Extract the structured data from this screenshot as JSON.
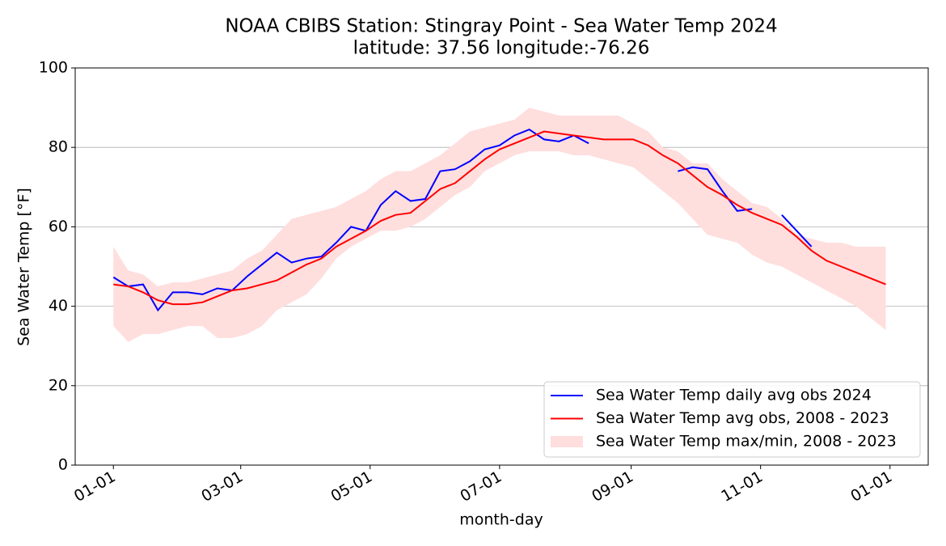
{
  "chart_data": {
    "type": "line",
    "title": "NOAA CBIBS Station: Stingray Point - Sea Water Temp 2024",
    "subtitle": "latitude: 37.56 longitude:-76.26",
    "x_label": "month-day",
    "y_label": "Sea Water Temp [°F]",
    "xlim": [
      -18,
      384
    ],
    "ylim": [
      0,
      100
    ],
    "xticks": [
      {
        "value": 0,
        "label": "01-01"
      },
      {
        "value": 60,
        "label": "03-01"
      },
      {
        "value": 121,
        "label": "05-01"
      },
      {
        "value": 182,
        "label": "07-01"
      },
      {
        "value": 244,
        "label": "09-01"
      },
      {
        "value": 305,
        "label": "11-01"
      },
      {
        "value": 366,
        "label": "01-01"
      }
    ],
    "yticks": [
      0,
      20,
      40,
      60,
      80,
      100
    ],
    "grid": "y",
    "legend": "lower right",
    "x": [
      0,
      7,
      14,
      21,
      28,
      35,
      42,
      49,
      56,
      63,
      70,
      77,
      84,
      91,
      98,
      105,
      112,
      119,
      126,
      133,
      140,
      147,
      154,
      161,
      168,
      175,
      182,
      189,
      196,
      203,
      210,
      217,
      224,
      231,
      238,
      245,
      252,
      259,
      266,
      273,
      280,
      287,
      294,
      301,
      308,
      315,
      322,
      329,
      336,
      343,
      350,
      357,
      364
    ],
    "series": [
      {
        "name": "Sea Water Temp daily avg obs 2024",
        "color": "#0000ff",
        "kind": "line",
        "values": [
          47.3,
          45,
          45.5,
          39,
          43.5,
          43.5,
          43,
          44.5,
          44,
          47.5,
          50.5,
          53.5,
          51,
          52,
          52.5,
          56,
          60,
          59,
          65.5,
          69,
          66.5,
          67,
          74,
          74.5,
          76.5,
          79.5,
          80.5,
          83,
          84.5,
          82,
          81.5,
          83,
          81,
          null,
          null,
          null,
          null,
          null,
          74,
          75,
          74.5,
          69,
          64,
          64.5,
          null,
          63,
          59,
          55,
          null,
          null,
          null,
          null,
          null
        ]
      },
      {
        "name": "Sea Water Temp avg obs, 2008 - 2023",
        "color": "#ff0000",
        "kind": "line",
        "values": [
          45.5,
          45,
          43.5,
          41.5,
          40.5,
          40.5,
          41,
          42.5,
          44,
          44.5,
          45.5,
          46.5,
          48.5,
          50.5,
          52,
          55,
          57,
          59,
          61.5,
          63,
          63.5,
          66.5,
          69.5,
          71,
          74,
          77,
          79.5,
          81,
          82.5,
          84,
          83.5,
          83,
          82.5,
          82,
          82,
          82,
          80.5,
          78,
          76,
          73,
          70,
          68,
          65.5,
          63.5,
          62,
          60.5,
          57.5,
          54,
          51.5,
          50,
          48.5,
          47,
          45.5
        ]
      },
      {
        "name": "Sea Water Temp max/min, 2008 - 2023",
        "color": "#ffdede",
        "kind": "band",
        "high": [
          55,
          49,
          48,
          45,
          46,
          46,
          47,
          48,
          49,
          52,
          54,
          58,
          62,
          63,
          64,
          65,
          67,
          69,
          72,
          74,
          74,
          76,
          78,
          81,
          84,
          85,
          86,
          87,
          90,
          89,
          88,
          88,
          88,
          88,
          88,
          86,
          84,
          80,
          79,
          76,
          76,
          72,
          69,
          66,
          65,
          62,
          58,
          57,
          56,
          56,
          55,
          55,
          55
        ],
        "low": [
          35,
          31,
          33,
          33,
          34,
          35,
          35,
          32,
          32,
          33,
          35,
          39,
          41,
          43,
          47,
          52,
          55,
          57,
          59,
          59,
          60,
          62,
          65,
          68,
          70,
          74,
          76,
          78,
          79,
          79,
          79,
          78,
          78,
          77,
          76,
          75,
          72,
          69,
          66,
          62,
          58,
          57,
          56,
          53,
          51,
          50,
          48,
          46,
          44,
          42,
          40,
          37,
          34
        ]
      }
    ]
  }
}
